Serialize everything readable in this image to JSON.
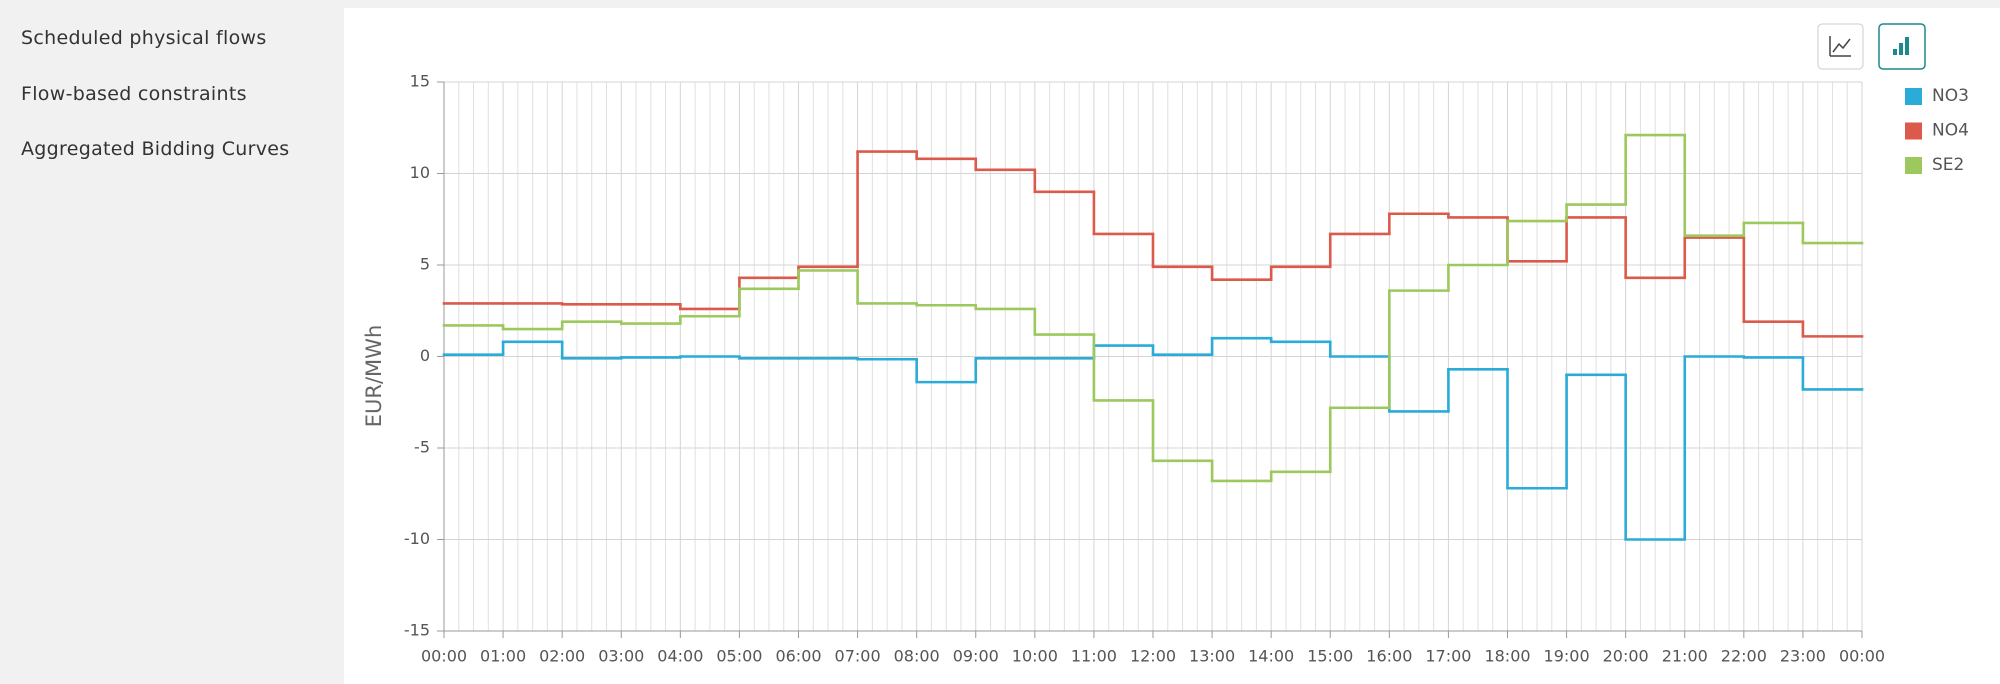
{
  "sidebar": {
    "items": [
      "Scheduled physical flows",
      "Flow-based constraints",
      "Aggregated Bidding Curves"
    ]
  },
  "chart_data": {
    "type": "step",
    "y_label": "EUR/MWh",
    "x": [
      0,
      1,
      2,
      3,
      4,
      5,
      6,
      7,
      8,
      9,
      10,
      11,
      12,
      13,
      14,
      15,
      16,
      17,
      18,
      19,
      20,
      21,
      22,
      23
    ],
    "xlim": [
      0,
      24
    ],
    "xticks": [
      {
        "value": 0,
        "label": "00:00"
      },
      {
        "value": 1,
        "label": "01:00"
      },
      {
        "value": 2,
        "label": "02:00"
      },
      {
        "value": 3,
        "label": "03:00"
      },
      {
        "value": 4,
        "label": "04:00"
      },
      {
        "value": 5,
        "label": "05:00"
      },
      {
        "value": 6,
        "label": "06:00"
      },
      {
        "value": 7,
        "label": "07:00"
      },
      {
        "value": 8,
        "label": "08:00"
      },
      {
        "value": 9,
        "label": "09:00"
      },
      {
        "value": 10,
        "label": "10:00"
      },
      {
        "value": 11,
        "label": "11:00"
      },
      {
        "value": 12,
        "label": "12:00"
      },
      {
        "value": 13,
        "label": "13:00"
      },
      {
        "value": 14,
        "label": "14:00"
      },
      {
        "value": 15,
        "label": "15:00"
      },
      {
        "value": 16,
        "label": "16:00"
      },
      {
        "value": 17,
        "label": "17:00"
      },
      {
        "value": 18,
        "label": "18:00"
      },
      {
        "value": 19,
        "label": "19:00"
      },
      {
        "value": 20,
        "label": "20:00"
      },
      {
        "value": 21,
        "label": "21:00"
      },
      {
        "value": 22,
        "label": "22:00"
      },
      {
        "value": 23,
        "label": "23:00"
      },
      {
        "value": 24,
        "label": "00:00"
      }
    ],
    "ylim": [
      -15,
      15
    ],
    "yticks": [
      -15,
      -10,
      -5,
      0,
      5,
      10,
      15
    ],
    "grid": true,
    "series": [
      {
        "name": "NO3",
        "color": "#2aabd8",
        "values": [
          0.1,
          0.8,
          -0.1,
          -0.05,
          0,
          -0.1,
          -0.1,
          -0.15,
          -1.4,
          -0.1,
          -0.1,
          0.6,
          0.1,
          1.0,
          0.8,
          0,
          -3.0,
          -0.7,
          -7.2,
          -1.0,
          -10.0,
          0,
          -0.05,
          -1.8
        ]
      },
      {
        "name": "NO4",
        "color": "#dc5a4b",
        "values": [
          2.9,
          2.9,
          2.85,
          2.85,
          2.6,
          4.3,
          4.9,
          11.2,
          10.8,
          10.2,
          9.0,
          6.7,
          4.9,
          4.2,
          4.9,
          6.7,
          7.8,
          7.6,
          5.2,
          7.6,
          4.3,
          6.5,
          1.9,
          1.1
        ]
      },
      {
        "name": "SE2",
        "color": "#9cc85e",
        "values": [
          1.7,
          1.5,
          1.9,
          1.8,
          2.2,
          3.7,
          4.7,
          2.9,
          2.8,
          2.6,
          1.2,
          -2.4,
          -5.7,
          -6.8,
          -6.3,
          -2.8,
          3.6,
          5.0,
          7.4,
          8.3,
          12.1,
          6.6,
          7.3,
          6.2
        ]
      }
    ]
  }
}
